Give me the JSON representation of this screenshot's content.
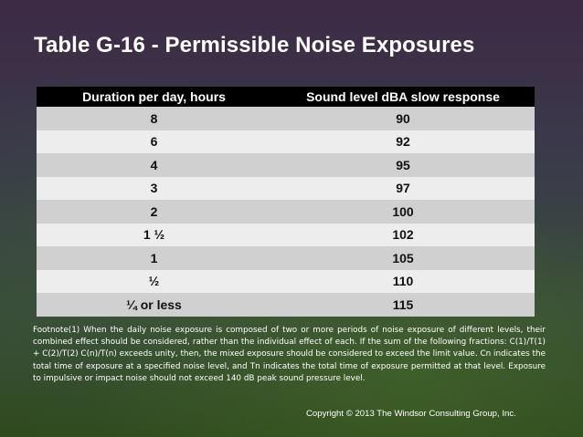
{
  "title": "Table G-16 - Permissible Noise Exposures",
  "table": {
    "headers": [
      "Duration per day, hours",
      "Sound level dBA slow response"
    ],
    "rows": [
      [
        "8",
        "90"
      ],
      [
        "6",
        "92"
      ],
      [
        "4",
        "95"
      ],
      [
        "3",
        "97"
      ],
      [
        "2",
        "100"
      ],
      [
        "1 ½",
        "102"
      ],
      [
        "1",
        "105"
      ],
      [
        "½",
        "110"
      ],
      [
        "¼ or less",
        "115"
      ]
    ]
  },
  "footnote": "Footnote(1) When the daily noise exposure is composed of two or more periods of noise exposure of different levels, their combined effect should be considered, rather than the individual effect of each. If the sum of the following fractions: C(1)/T(1) + C(2)/T(2) C(n)/T(n) exceeds unity, then, the mixed exposure should be considered to exceed the limit value. Cn indicates the total time of exposure at a specified noise level, and Tn indicates the total time of exposure permitted at that level. Exposure to impulsive or impact noise should not exceed 140 dB peak sound pressure level.",
  "copyright": "Copyright © 2013 The Windsor Consulting Group, Inc."
}
